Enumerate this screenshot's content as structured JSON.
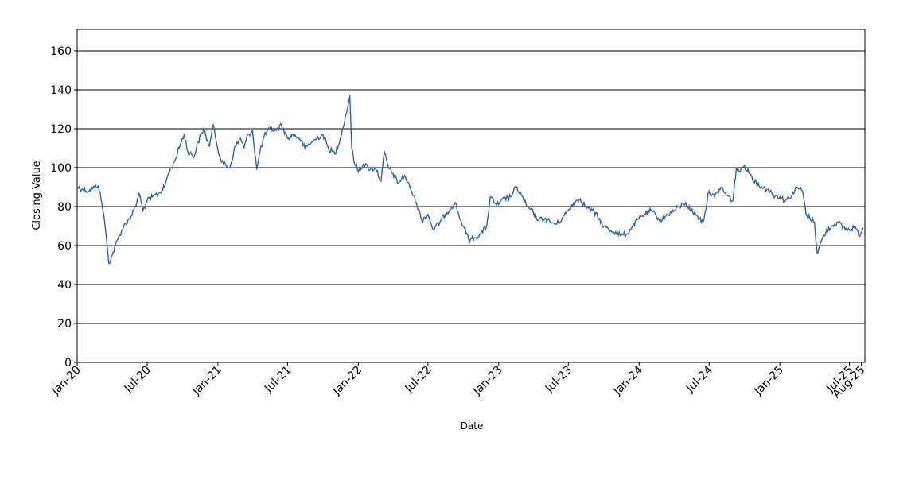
{
  "chart_data": {
    "type": "line",
    "title": "",
    "xlabel": "Date",
    "ylabel": "Closing Value",
    "ylim": [
      0,
      171
    ],
    "xlim": [
      "2020-01-01",
      "2025-08-10"
    ],
    "yticks": [
      0,
      20,
      40,
      60,
      80,
      100,
      120,
      140,
      160
    ],
    "xticks": [
      {
        "date": "2020-01-01",
        "label": "Jan-20"
      },
      {
        "date": "2020-07-01",
        "label": "Jul-20"
      },
      {
        "date": "2021-01-01",
        "label": "Jan-21"
      },
      {
        "date": "2021-07-01",
        "label": "Jul-21"
      },
      {
        "date": "2022-01-01",
        "label": "Jan-22"
      },
      {
        "date": "2022-07-01",
        "label": "Jul-22"
      },
      {
        "date": "2023-01-01",
        "label": "Jan-23"
      },
      {
        "date": "2023-07-01",
        "label": "Jul-23"
      },
      {
        "date": "2024-01-01",
        "label": "Jan-24"
      },
      {
        "date": "2024-07-01",
        "label": "Jul-24"
      },
      {
        "date": "2025-01-01",
        "label": "Jan-25"
      },
      {
        "date": "2025-07-01",
        "label": "Jul-25"
      },
      {
        "date": "2025-08-01",
        "label": "Aug-25"
      }
    ],
    "grid": {
      "horizontal": true,
      "vertical": false
    },
    "legend": "none",
    "series": [
      {
        "color": "#2f63a8",
        "points": [
          [
            "2020-01-01",
            90
          ],
          [
            "2020-01-15",
            89
          ],
          [
            "2020-02-01",
            88
          ],
          [
            "2020-02-15",
            90
          ],
          [
            "2020-02-25",
            91
          ],
          [
            "2020-03-05",
            82
          ],
          [
            "2020-03-10",
            76
          ],
          [
            "2020-03-18",
            62
          ],
          [
            "2020-03-23",
            51
          ],
          [
            "2020-04-01",
            55
          ],
          [
            "2020-04-15",
            63
          ],
          [
            "2020-05-01",
            70
          ],
          [
            "2020-05-20",
            75
          ],
          [
            "2020-06-01",
            80
          ],
          [
            "2020-06-10",
            87
          ],
          [
            "2020-06-20",
            78
          ],
          [
            "2020-07-01",
            83
          ],
          [
            "2020-07-15",
            85
          ],
          [
            "2020-08-01",
            87
          ],
          [
            "2020-08-15",
            90
          ],
          [
            "2020-08-25",
            97
          ],
          [
            "2020-09-10",
            103
          ],
          [
            "2020-09-25",
            112
          ],
          [
            "2020-10-05",
            117
          ],
          [
            "2020-10-15",
            108
          ],
          [
            "2020-11-01",
            106
          ],
          [
            "2020-11-10",
            113
          ],
          [
            "2020-11-25",
            120
          ],
          [
            "2020-12-01",
            116
          ],
          [
            "2020-12-10",
            111
          ],
          [
            "2020-12-20",
            122
          ],
          [
            "2021-01-05",
            106
          ],
          [
            "2021-01-15",
            102
          ],
          [
            "2021-02-01",
            100
          ],
          [
            "2021-02-15",
            111
          ],
          [
            "2021-03-01",
            115
          ],
          [
            "2021-03-10",
            110
          ],
          [
            "2021-03-20",
            117
          ],
          [
            "2021-04-01",
            119
          ],
          [
            "2021-04-12",
            99
          ],
          [
            "2021-04-20",
            108
          ],
          [
            "2021-05-01",
            116
          ],
          [
            "2021-05-15",
            120
          ],
          [
            "2021-06-01",
            119
          ],
          [
            "2021-06-15",
            122
          ],
          [
            "2021-07-01",
            115
          ],
          [
            "2021-07-15",
            117
          ],
          [
            "2021-08-01",
            115
          ],
          [
            "2021-08-15",
            110
          ],
          [
            "2021-09-01",
            113
          ],
          [
            "2021-09-15",
            115
          ],
          [
            "2021-10-01",
            117
          ],
          [
            "2021-10-15",
            110
          ],
          [
            "2021-11-01",
            107
          ],
          [
            "2021-11-15",
            115
          ],
          [
            "2021-12-01",
            128
          ],
          [
            "2021-12-10",
            137
          ],
          [
            "2021-12-15",
            110
          ],
          [
            "2021-12-20",
            104
          ],
          [
            "2022-01-01",
            98
          ],
          [
            "2022-01-15",
            102
          ],
          [
            "2022-02-01",
            99
          ],
          [
            "2022-02-15",
            100
          ],
          [
            "2022-03-01",
            93
          ],
          [
            "2022-03-10",
            108
          ],
          [
            "2022-03-20",
            100
          ],
          [
            "2022-04-01",
            97
          ],
          [
            "2022-04-15",
            92
          ],
          [
            "2022-05-01",
            96
          ],
          [
            "2022-05-15",
            90
          ],
          [
            "2022-06-01",
            82
          ],
          [
            "2022-06-15",
            73
          ],
          [
            "2022-07-01",
            76
          ],
          [
            "2022-07-15",
            68
          ],
          [
            "2022-08-01",
            72
          ],
          [
            "2022-08-15",
            76
          ],
          [
            "2022-09-01",
            80
          ],
          [
            "2022-09-10",
            82
          ],
          [
            "2022-09-20",
            75
          ],
          [
            "2022-10-01",
            70
          ],
          [
            "2022-10-15",
            63
          ],
          [
            "2022-11-01",
            64
          ],
          [
            "2022-11-15",
            66
          ],
          [
            "2022-12-01",
            70
          ],
          [
            "2022-12-10",
            85
          ],
          [
            "2022-12-20",
            82
          ],
          [
            "2023-01-01",
            81
          ],
          [
            "2023-01-15",
            84
          ],
          [
            "2023-02-01",
            85
          ],
          [
            "2023-02-15",
            90
          ],
          [
            "2023-03-01",
            86
          ],
          [
            "2023-03-15",
            80
          ],
          [
            "2023-04-01",
            77
          ],
          [
            "2023-04-15",
            73
          ],
          [
            "2023-05-01",
            74
          ],
          [
            "2023-05-15",
            72
          ],
          [
            "2023-06-01",
            71
          ],
          [
            "2023-06-15",
            74
          ],
          [
            "2023-07-01",
            78
          ],
          [
            "2023-07-15",
            82
          ],
          [
            "2023-08-01",
            84
          ],
          [
            "2023-08-15",
            80
          ],
          [
            "2023-09-01",
            78
          ],
          [
            "2023-09-15",
            75
          ],
          [
            "2023-10-01",
            70
          ],
          [
            "2023-10-15",
            68
          ],
          [
            "2023-11-01",
            67
          ],
          [
            "2023-11-15",
            65
          ],
          [
            "2023-12-01",
            66
          ],
          [
            "2023-12-15",
            70
          ],
          [
            "2024-01-01",
            74
          ],
          [
            "2024-01-15",
            76
          ],
          [
            "2024-02-01",
            78
          ],
          [
            "2024-02-15",
            75
          ],
          [
            "2024-03-01",
            73
          ],
          [
            "2024-03-15",
            76
          ],
          [
            "2024-04-01",
            78
          ],
          [
            "2024-04-15",
            80
          ],
          [
            "2024-05-01",
            82
          ],
          [
            "2024-05-15",
            78
          ],
          [
            "2024-06-01",
            75
          ],
          [
            "2024-06-15",
            72
          ],
          [
            "2024-07-01",
            88
          ],
          [
            "2024-07-15",
            85
          ],
          [
            "2024-08-01",
            90
          ],
          [
            "2024-08-15",
            86
          ],
          [
            "2024-09-01",
            83
          ],
          [
            "2024-09-10",
            100
          ],
          [
            "2024-09-20",
            98
          ],
          [
            "2024-10-01",
            101
          ],
          [
            "2024-10-15",
            97
          ],
          [
            "2024-11-01",
            92
          ],
          [
            "2024-11-15",
            90
          ],
          [
            "2024-12-01",
            89
          ],
          [
            "2024-12-15",
            86
          ],
          [
            "2025-01-01",
            85
          ],
          [
            "2025-01-15",
            83
          ],
          [
            "2025-02-01",
            86
          ],
          [
            "2025-02-15",
            90
          ],
          [
            "2025-03-01",
            88
          ],
          [
            "2025-03-10",
            76
          ],
          [
            "2025-03-20",
            74
          ],
          [
            "2025-04-01",
            72
          ],
          [
            "2025-04-08",
            56
          ],
          [
            "2025-04-20",
            63
          ],
          [
            "2025-05-01",
            67
          ],
          [
            "2025-05-15",
            70
          ],
          [
            "2025-06-01",
            72
          ],
          [
            "2025-06-15",
            69
          ],
          [
            "2025-07-01",
            68
          ],
          [
            "2025-07-15",
            70
          ],
          [
            "2025-07-25",
            65
          ],
          [
            "2025-08-05",
            69
          ]
        ]
      }
    ]
  }
}
